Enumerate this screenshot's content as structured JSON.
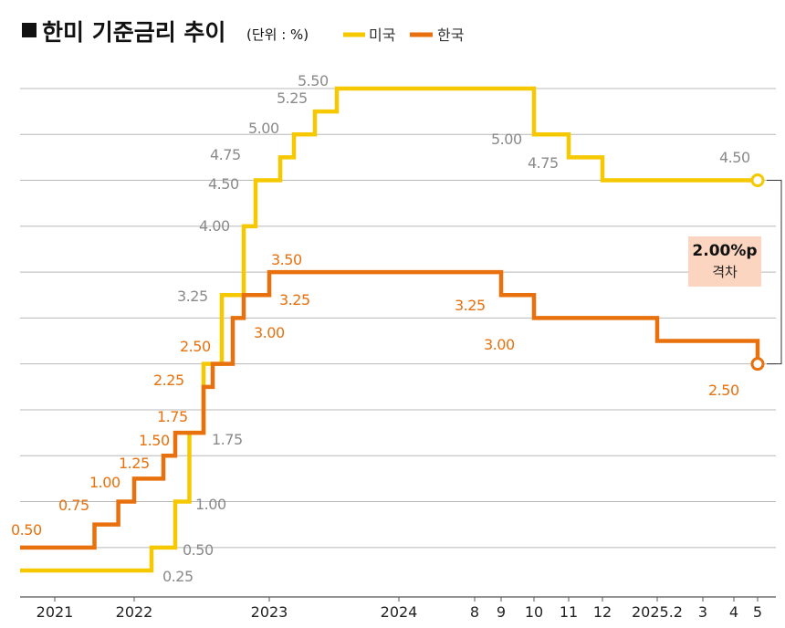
{
  "chart_data": {
    "type": "line",
    "title": "한미 기준금리 추이",
    "unit": "(단위 : %)",
    "colors": {
      "us": "#f5c800",
      "kr": "#e8700d",
      "gap_box": "#fbd5c0"
    },
    "x_ticks": [
      {
        "label": "2021",
        "x": "2021-03"
      },
      {
        "label": "2022",
        "x": "2022-01"
      },
      {
        "label": "2023",
        "x": "2023-01"
      },
      {
        "label": "2024",
        "x": "2024-01"
      },
      {
        "label": "8",
        "x": "2024-08"
      },
      {
        "label": "9",
        "x": "2024-09"
      },
      {
        "label": "10",
        "x": "2024-10"
      },
      {
        "label": "11",
        "x": "2024-11"
      },
      {
        "label": "12",
        "x": "2024-12"
      },
      {
        "label": "2025.2",
        "x": "2025-02"
      },
      {
        "label": "3",
        "x": "2025-03"
      },
      {
        "label": "4",
        "x": "2025-04"
      },
      {
        "label": "5",
        "x": "2025-05"
      }
    ],
    "ylim": [
      0.0,
      5.5
    ],
    "series": [
      {
        "name": "미국",
        "points": [
          {
            "x": "2021-01",
            "y": 0.25
          },
          {
            "x": "2022-03",
            "y": 0.5
          },
          {
            "x": "2022-05",
            "y": 1.0
          },
          {
            "x": "2022-06",
            "y": 1.75
          },
          {
            "x": "2022-07",
            "y": 2.5
          },
          {
            "x": "2022-09",
            "y": 3.25
          },
          {
            "x": "2022-11",
            "y": 4.0
          },
          {
            "x": "2022-12",
            "y": 4.5
          },
          {
            "x": "2023-02",
            "y": 4.75
          },
          {
            "x": "2023-03",
            "y": 5.0
          },
          {
            "x": "2023-05",
            "y": 5.25
          },
          {
            "x": "2023-07",
            "y": 5.5
          },
          {
            "x": "2024-10",
            "y": 5.0
          },
          {
            "x": "2024-11",
            "y": 4.75
          },
          {
            "x": "2024-12",
            "y": 4.5
          },
          {
            "x": "2025-05",
            "y": 4.5
          }
        ],
        "labels": [
          "0.25",
          "0.50",
          "1.00",
          "1.75",
          "3.25",
          "4.00",
          "4.50",
          "4.75",
          "5.00",
          "5.25",
          "5.50",
          "5.00",
          "4.75",
          "4.50"
        ]
      },
      {
        "name": "한국",
        "points": [
          {
            "x": "2021-01",
            "y": 0.5
          },
          {
            "x": "2021-08",
            "y": 0.75
          },
          {
            "x": "2021-11",
            "y": 1.0
          },
          {
            "x": "2022-01",
            "y": 1.25
          },
          {
            "x": "2022-04",
            "y": 1.5
          },
          {
            "x": "2022-05",
            "y": 1.75
          },
          {
            "x": "2022-07",
            "y": 2.25
          },
          {
            "x": "2022-08",
            "y": 2.5
          },
          {
            "x": "2022-10",
            "y": 3.0
          },
          {
            "x": "2022-11",
            "y": 3.25
          },
          {
            "x": "2023-01",
            "y": 3.5
          },
          {
            "x": "2024-09",
            "y": 3.25
          },
          {
            "x": "2024-10",
            "y": 3.0
          },
          {
            "x": "2025-02",
            "y": 2.75
          },
          {
            "x": "2025-05",
            "y": 2.5
          }
        ],
        "labels": [
          "0.50",
          "0.75",
          "1.00",
          "1.25",
          "1.50",
          "1.75",
          "2.25",
          "2.50",
          "3.00",
          "3.25",
          "3.50",
          "3.25",
          "3.00",
          "2.50"
        ]
      }
    ],
    "gap_annotation": {
      "value": "2.00%p",
      "text": "격차"
    }
  }
}
